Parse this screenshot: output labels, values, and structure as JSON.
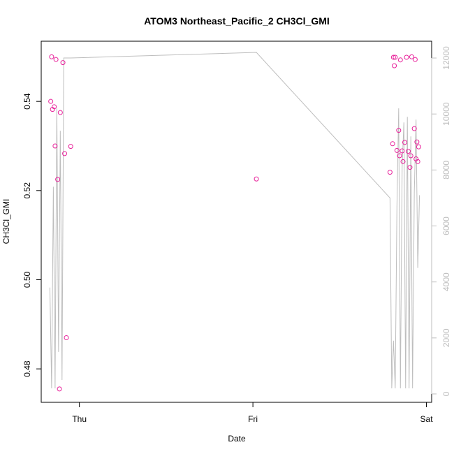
{
  "chart_data": {
    "type": "scatter",
    "title": "ATOM3 Northeast_Pacific_2 CH3Cl_GMI",
    "xlabel": "Date",
    "ylabel": "CH3Cl_GMI",
    "x_ticks": [
      "Thu",
      "Fri",
      "Sat"
    ],
    "x_tick_days": [
      1,
      2,
      3
    ],
    "xlim_days": [
      0.78,
      3.03
    ],
    "ylim": [
      0.4725,
      0.5535
    ],
    "y_ticks": [
      0.48,
      0.5,
      0.52,
      0.54
    ],
    "y_tick_labels": [
      "0.48",
      "0.50",
      "0.52",
      "0.54"
    ],
    "y2lim": [
      -300,
      12600
    ],
    "y2_ticks": [
      0,
      2000,
      4000,
      6000,
      8000,
      10000,
      12000
    ],
    "y2_tick_labels": [
      "0",
      "2000",
      "4000",
      "6000",
      "8000",
      "10000",
      "12000"
    ],
    "grid": false,
    "series": [
      {
        "kind": "points",
        "color": "#e8209a",
        "axis": "left",
        "x": [
          0.835,
          0.84,
          0.845,
          0.855,
          0.86,
          0.865,
          0.875,
          0.885,
          0.89,
          0.905,
          0.915,
          0.925,
          0.95,
          2.02,
          2.79,
          2.805,
          2.81,
          2.815,
          2.82,
          2.83,
          2.84,
          2.845,
          2.85,
          2.86,
          2.865,
          2.875,
          2.885,
          2.895,
          2.905,
          2.91,
          2.915,
          2.93,
          2.935,
          2.94,
          2.945,
          2.95,
          2.955
        ],
        "y": [
          0.54,
          0.55,
          0.5382,
          0.5388,
          0.53,
          0.5494,
          0.5225,
          0.4755,
          0.5375,
          0.5487,
          0.5283,
          0.487,
          0.5299,
          0.5226,
          0.5241,
          0.5305,
          0.5499,
          0.548,
          0.5499,
          0.529,
          0.5335,
          0.5278,
          0.5493,
          0.5289,
          0.5265,
          0.5308,
          0.5499,
          0.5288,
          0.5252,
          0.5278,
          0.55,
          0.5339,
          0.5494,
          0.5271,
          0.5309,
          0.5265,
          0.5298
        ]
      },
      {
        "kind": "line",
        "color": "#bebebe",
        "axis": "right",
        "x": [
          0.83,
          0.84,
          0.85,
          0.86,
          0.87,
          0.88,
          0.89,
          0.9,
          0.91,
          0.92,
          0.95,
          2.02,
          2.79,
          2.8,
          2.81,
          2.82,
          2.83,
          2.84,
          2.85,
          2.86,
          2.87,
          2.88,
          2.89,
          2.9,
          2.91,
          2.92,
          2.93,
          2.94,
          2.95,
          2.96
        ],
        "y": [
          3800,
          200,
          7400,
          200,
          10200,
          1500,
          9400,
          500,
          12000,
          12000,
          12000,
          12200,
          7000,
          200,
          1900,
          200,
          6700,
          10200,
          200,
          8100,
          9700,
          200,
          9900,
          200,
          9200,
          200,
          7200,
          9800,
          4500,
          7100
        ]
      }
    ]
  }
}
